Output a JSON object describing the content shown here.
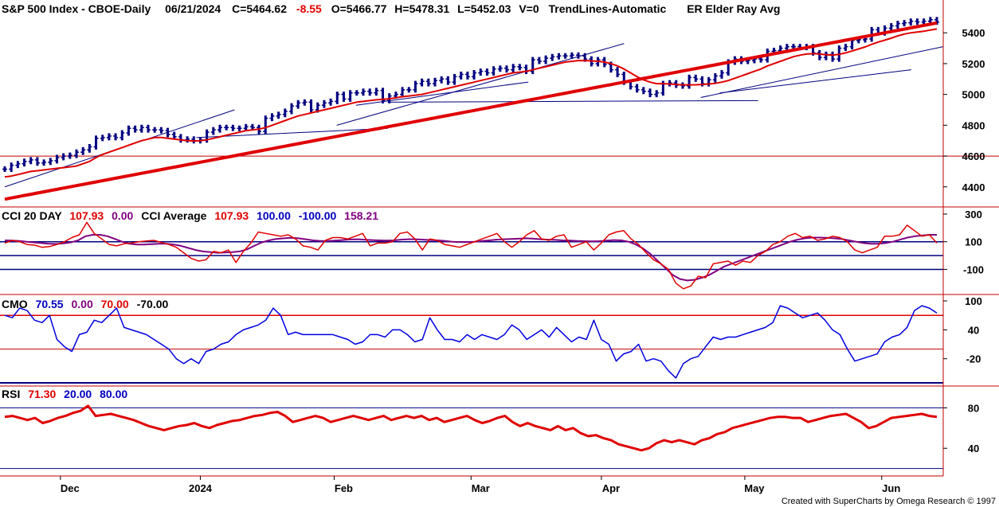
{
  "header": {
    "symbol": "S&P 500 Index - CBOE-Daily",
    "date": "06/21/2024",
    "close": "C=5464.62",
    "change": "-8.55",
    "open": "O=5466.77",
    "high": "H=5478.31",
    "low": "L=5452.03",
    "volume": "V=0",
    "trendlines": "TrendLines-Automatic",
    "elder": "ER Elder Ray Avg"
  },
  "cci_header": {
    "name": "CCI 20 DAY",
    "value": "107.93",
    "zero": "0.00",
    "avg_name": "CCI Average",
    "avg_value": "107.93",
    "upper": "100.00",
    "lower": "-100.00",
    "avg2": "158.21"
  },
  "cmo_header": {
    "name": "CMO",
    "value": "70.55",
    "zero": "0.00",
    "upper": "70.00",
    "lower": "-70.00"
  },
  "rsi_header": {
    "name": "RSI",
    "value": "71.30",
    "lower": "20.00",
    "upper": "80.00"
  },
  "credit": "Created with SuperCharts by Omega Research © 1997",
  "colors": {
    "price_bar": "#000080",
    "ma_short": "#e00000",
    "ma_long": "#e00000",
    "trendline": "#000080",
    "cci": "#e00000",
    "cci_avg": "#800080",
    "cmo": "#0000e0",
    "rsi": "#e00000",
    "ref_blue": "#000080",
    "ref_red": "#e00000",
    "divider": "#c00000",
    "label_black": "#000000",
    "label_red": "#e00000",
    "label_blue": "#0000c0",
    "label_purple": "#800080"
  },
  "chart_data": [
    {
      "type": "ohlc",
      "panel": "price",
      "x_labels": [
        "Dec",
        "2024",
        "Feb",
        "Mar",
        "Apr",
        "May",
        "Jun"
      ],
      "y_ticks": [
        4400,
        4600,
        4800,
        5000,
        5200,
        5400
      ],
      "ylim": [
        4280,
        5520
      ],
      "close": [
        4515,
        4540,
        4550,
        4565,
        4575,
        4555,
        4560,
        4570,
        4590,
        4600,
        4605,
        4625,
        4640,
        4660,
        4715,
        4720,
        4730,
        4720,
        4750,
        4780,
        4770,
        4785,
        4770,
        4770,
        4765,
        4740,
        4725,
        4705,
        4710,
        4700,
        4705,
        4755,
        4770,
        4785,
        4785,
        4780,
        4780,
        4790,
        4785,
        4760,
        4845,
        4860,
        4870,
        4890,
        4925,
        4945,
        4950,
        4900,
        4930,
        4945,
        4955,
        5000,
        4970,
        5010,
        5010,
        5020,
        5010,
        5025,
        4960,
        4990,
        5000,
        5030,
        5030,
        5070,
        5085,
        5070,
        5090,
        5100,
        5080,
        5115,
        5130,
        5115,
        5140,
        5150,
        5140,
        5165,
        5170,
        5160,
        5180,
        5175,
        5150,
        5225,
        5215,
        5235,
        5245,
        5250,
        5250,
        5255,
        5250,
        5230,
        5200,
        5225,
        5195,
        5160,
        5130,
        5080,
        5050,
        5030,
        5020,
        5000,
        5010,
        5070,
        5075,
        5060,
        5055,
        5110,
        5100,
        5070,
        5095,
        5120,
        5140,
        5210,
        5230,
        5215,
        5220,
        5230,
        5225,
        5280,
        5285,
        5300,
        5310,
        5310,
        5305,
        5310,
        5270,
        5240,
        5260,
        5230,
        5300,
        5310,
        5350,
        5355,
        5360,
        5420,
        5400,
        5430,
        5445,
        5460,
        5465,
        5475,
        5470,
        5475,
        5485,
        5470
      ],
      "ma_short": [
        4465,
        4470,
        4480,
        4490,
        4500,
        4505,
        4510,
        4515,
        4520,
        4525,
        4530,
        4535,
        4550,
        4565,
        4590,
        4610,
        4625,
        4640,
        4655,
        4670,
        4685,
        4700,
        4710,
        4720,
        4720,
        4715,
        4710,
        4705,
        4700,
        4698,
        4700,
        4705,
        4715,
        4725,
        4735,
        4745,
        4755,
        4765,
        4770,
        4775,
        4785,
        4800,
        4815,
        4830,
        4845,
        4860,
        4870,
        4880,
        4890,
        4900,
        4910,
        4920,
        4930,
        4940,
        4950,
        4955,
        4960,
        4965,
        4968,
        4972,
        4978,
        4985,
        4990,
        4995,
        5000,
        5010,
        5020,
        5030,
        5040,
        5050,
        5060,
        5070,
        5080,
        5090,
        5100,
        5110,
        5120,
        5130,
        5140,
        5145,
        5150,
        5160,
        5170,
        5180,
        5190,
        5200,
        5210,
        5215,
        5220,
        5220,
        5218,
        5215,
        5210,
        5200,
        5185,
        5165,
        5140,
        5115,
        5095,
        5080,
        5070,
        5070,
        5068,
        5065,
        5062,
        5062,
        5063,
        5065,
        5068,
        5072,
        5080,
        5090,
        5105,
        5120,
        5135,
        5150,
        5165,
        5185,
        5200,
        5215,
        5230,
        5245,
        5255,
        5262,
        5265,
        5262,
        5258,
        5255,
        5260,
        5270,
        5282,
        5295,
        5308,
        5325,
        5340,
        5352,
        5365,
        5380,
        5392,
        5400,
        5405,
        5410,
        5418,
        5425
      ],
      "ma_long": [
        4320,
        4328,
        4336,
        4344,
        4352,
        4360,
        4368,
        4376,
        4384,
        4392,
        4400,
        4408,
        4416,
        4424,
        4432,
        4440,
        4448,
        4456,
        4464,
        4472,
        4480,
        4488,
        4496,
        4504,
        4512,
        4520,
        4528,
        4536,
        4544,
        4552,
        4560,
        4568,
        4576,
        4584,
        4592,
        4600,
        4608,
        4616,
        4624,
        4632,
        4640,
        4648,
        4656,
        4664,
        4672,
        4680,
        4688,
        4696,
        4704,
        4712,
        4720,
        4728,
        4736,
        4744,
        4752,
        4760,
        4768,
        4776,
        4784,
        4792,
        4800,
        4808,
        4816,
        4824,
        4832,
        4840,
        4848,
        4856,
        4864,
        4872,
        4880,
        4888,
        4896,
        4904,
        4912,
        4920,
        4928,
        4936,
        4944,
        4952,
        4960,
        4968,
        4976,
        4984,
        4992,
        5000,
        5008,
        5016,
        5024,
        5032,
        5040,
        5048,
        5056,
        5064,
        5072,
        5080,
        5088,
        5096,
        5104,
        5112,
        5120,
        5128,
        5136,
        5144,
        5152,
        5160,
        5168,
        5176,
        5184,
        5192,
        5200,
        5208,
        5216,
        5224,
        5232,
        5240,
        5248,
        5256,
        5264,
        5272,
        5280,
        5288,
        5296,
        5304,
        5312,
        5320,
        5328,
        5336,
        5344,
        5352,
        5360,
        5368,
        5376,
        5384,
        5392,
        5400,
        5408,
        5416,
        5424,
        5432,
        5440,
        5448,
        5456,
        5464
      ],
      "note_ma_long_path": [
        [
          4366,
          0
        ],
        [
          4430,
          30
        ],
        [
          4510,
          60
        ],
        [
          4590,
          90
        ],
        [
          4660,
          120
        ],
        [
          4740,
          150
        ],
        [
          4840,
          182
        ]
      ]
    },
    {
      "type": "line",
      "panel": "cci",
      "y_ticks": [
        300,
        100,
        -100
      ],
      "reference_lines": [
        100,
        0,
        -100
      ],
      "ylim": [
        -270,
        340
      ],
      "series": [
        {
          "name": "CCI 20 DAY",
          "values": [
            90,
            110,
            100,
            80,
            75,
            60,
            65,
            80,
            100,
            130,
            150,
            240,
            160,
            120,
            80,
            70,
            85,
            90,
            100,
            105,
            110,
            95,
            80,
            60,
            20,
            -20,
            -40,
            -30,
            30,
            20,
            40,
            -50,
            30,
            90,
            170,
            160,
            150,
            140,
            150,
            120,
            70,
            60,
            40,
            110,
            130,
            130,
            120,
            140,
            160,
            70,
            90,
            90,
            100,
            160,
            170,
            120,
            40,
            120,
            110,
            80,
            70,
            60,
            80,
            100,
            120,
            140,
            160,
            100,
            60,
            100,
            150,
            180,
            120,
            110,
            140,
            150,
            60,
            80,
            100,
            40,
            90,
            150,
            170,
            180,
            120,
            80,
            20,
            -30,
            -60,
            -100,
            -200,
            -240,
            -220,
            -150,
            -160,
            -60,
            -50,
            -40,
            -70,
            -40,
            -50,
            0,
            30,
            80,
            100,
            140,
            160,
            130,
            140,
            110,
            120,
            140,
            130,
            100,
            40,
            20,
            40,
            60,
            140,
            140,
            150,
            220,
            180,
            140,
            150,
            90
          ],
          "note": "approximate reading"
        },
        {
          "name": "CCI Average",
          "values": [
            110,
            108,
            105,
            100,
            95,
            90,
            85,
            84,
            88,
            95,
            110,
            140,
            150,
            150,
            140,
            120,
            100,
            85,
            80,
            80,
            82,
            85,
            85,
            80,
            70,
            55,
            40,
            30,
            25,
            20,
            22,
            25,
            30,
            45,
            70,
            95,
            110,
            120,
            125,
            128,
            125,
            118,
            110,
            105,
            105,
            108,
            112,
            116,
            118,
            115,
            112,
            110,
            108,
            110,
            115,
            118,
            118,
            115,
            112,
            110,
            105,
            100,
            98,
            98,
            100,
            105,
            110,
            115,
            118,
            120,
            122,
            125,
            122,
            118,
            115,
            113,
            110,
            108,
            106,
            104,
            103,
            104,
            108,
            112,
            110,
            100,
            80,
            50,
            10,
            -40,
            -90,
            -140,
            -170,
            -180,
            -175,
            -160,
            -140,
            -110,
            -80,
            -60,
            -40,
            -20,
            0,
            20,
            40,
            60,
            80,
            100,
            115,
            125,
            130,
            130,
            128,
            125,
            120,
            110,
            100,
            90,
            85,
            85,
            90,
            100,
            115,
            130,
            140,
            145,
            150,
            150
          ],
          "note": "approximate reading"
        }
      ]
    },
    {
      "type": "line",
      "panel": "cmo",
      "y_ticks": [
        100,
        40,
        -20
      ],
      "reference_lines": [
        70,
        0,
        -70
      ],
      "ylim": [
        -75,
        110
      ],
      "series": [
        {
          "name": "CMO",
          "values": [
            70,
            65,
            85,
            80,
            60,
            55,
            70,
            20,
            5,
            -5,
            30,
            35,
            60,
            55,
            70,
            85,
            45,
            40,
            35,
            30,
            20,
            10,
            0,
            -20,
            -30,
            -20,
            -30,
            -5,
            0,
            10,
            15,
            30,
            40,
            45,
            50,
            60,
            85,
            70,
            30,
            35,
            30,
            30,
            30,
            30,
            30,
            25,
            20,
            10,
            15,
            30,
            30,
            25,
            40,
            40,
            30,
            15,
            20,
            65,
            40,
            20,
            20,
            15,
            30,
            20,
            30,
            25,
            20,
            30,
            50,
            40,
            20,
            30,
            40,
            25,
            45,
            30,
            15,
            25,
            20,
            60,
            20,
            10,
            -25,
            -10,
            -5,
            10,
            -25,
            -20,
            -25,
            -45,
            -60,
            -30,
            -20,
            -15,
            5,
            25,
            20,
            25,
            25,
            30,
            35,
            40,
            45,
            55,
            90,
            85,
            75,
            65,
            70,
            75,
            60,
            40,
            30,
            0,
            -25,
            -20,
            -15,
            -10,
            15,
            25,
            30,
            45,
            80,
            90,
            85,
            75
          ],
          "note": "approximate reading"
        }
      ]
    },
    {
      "type": "line",
      "panel": "rsi",
      "y_ticks": [
        80,
        40
      ],
      "reference_lines": [
        80,
        20
      ],
      "ylim": [
        15,
        100
      ],
      "series": [
        {
          "name": "RSI",
          "values": [
            71,
            72,
            70,
            68,
            70,
            65,
            67,
            70,
            72,
            75,
            77,
            82,
            72,
            73,
            74,
            72,
            70,
            68,
            65,
            62,
            60,
            58,
            60,
            62,
            63,
            65,
            62,
            60,
            63,
            65,
            67,
            68,
            70,
            72,
            73,
            75,
            76,
            72,
            66,
            68,
            70,
            72,
            70,
            66,
            68,
            70,
            72,
            70,
            68,
            70,
            72,
            68,
            70,
            72,
            70,
            72,
            68,
            70,
            66,
            68,
            70,
            72,
            68,
            65,
            67,
            70,
            72,
            66,
            62,
            65,
            62,
            60,
            58,
            62,
            58,
            60,
            55,
            52,
            53,
            50,
            48,
            44,
            42,
            40,
            38,
            40,
            45,
            48,
            46,
            48,
            46,
            44,
            48,
            50,
            54,
            56,
            60,
            62,
            64,
            66,
            68,
            70,
            71,
            71,
            70,
            70,
            66,
            68,
            70,
            72,
            73,
            74,
            70,
            66,
            60,
            62,
            66,
            70,
            71,
            72,
            73,
            74,
            72,
            71
          ],
          "note": "approximate reading"
        }
      ]
    }
  ]
}
